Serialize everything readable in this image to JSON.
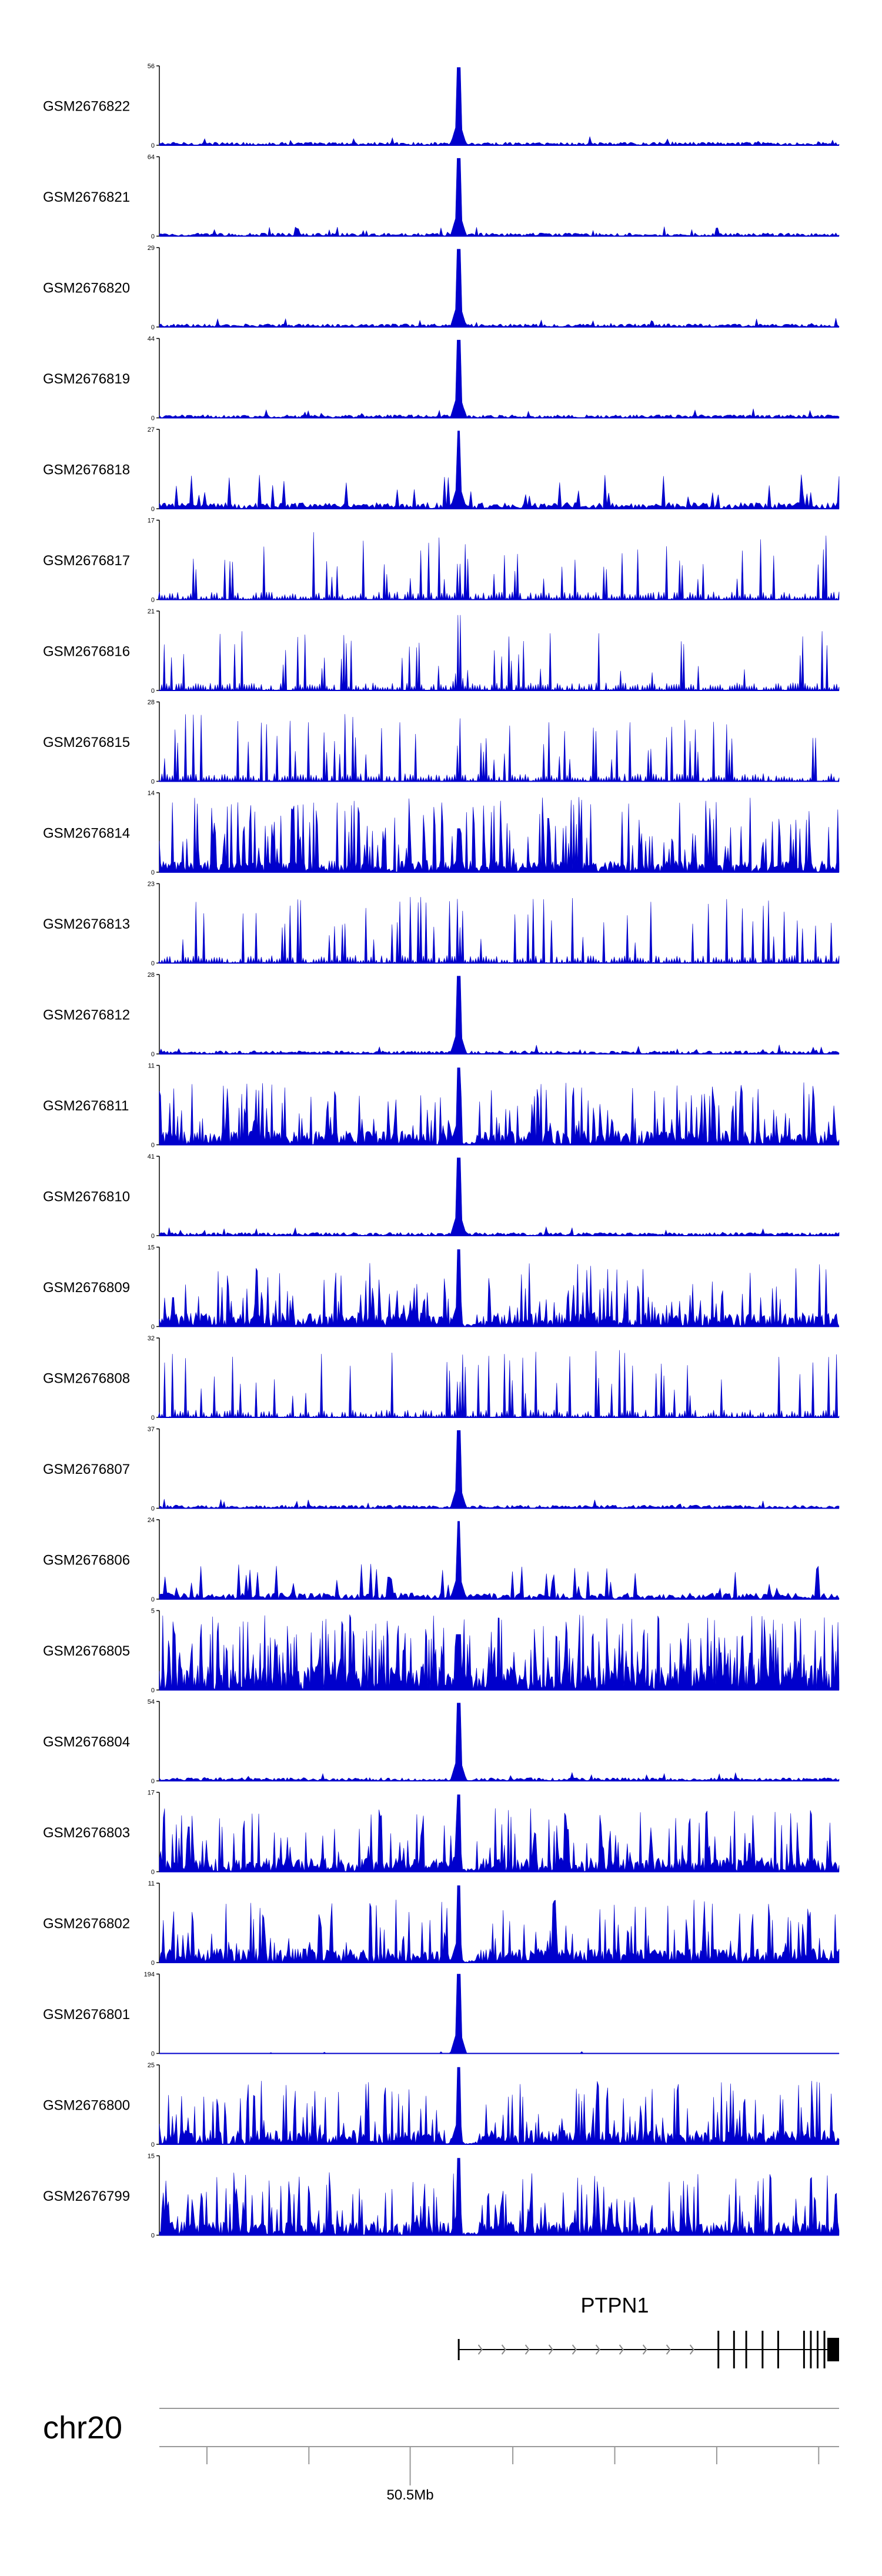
{
  "chart_data": {
    "type": "area",
    "title": "",
    "color": "#0000cc",
    "axis_color": "#000000",
    "gene_color": "#000000",
    "intron_arrow_color": "#888888",
    "peak_fraction": 0.44,
    "series": [
      {
        "name": "GSM2676822",
        "ymax": 56,
        "ymin": 0,
        "profile": "sparse-peak"
      },
      {
        "name": "GSM2676821",
        "ymax": 64,
        "ymin": 0,
        "profile": "sparse-peak"
      },
      {
        "name": "GSM2676820",
        "ymax": 29,
        "ymin": 0,
        "profile": "sparse-peak"
      },
      {
        "name": "GSM2676819",
        "ymax": 44,
        "ymin": 0,
        "profile": "sparse-peak"
      },
      {
        "name": "GSM2676818",
        "ymax": 27,
        "ymin": 0,
        "profile": "moderate-peak"
      },
      {
        "name": "GSM2676817",
        "ymax": 17,
        "ymin": 0,
        "profile": "triangular"
      },
      {
        "name": "GSM2676816",
        "ymax": 21,
        "ymin": 0,
        "profile": "triangular-peak"
      },
      {
        "name": "GSM2676815",
        "ymax": 28,
        "ymin": 0,
        "profile": "triangular"
      },
      {
        "name": "GSM2676814",
        "ymax": 14,
        "ymin": 0,
        "profile": "dense-spiky"
      },
      {
        "name": "GSM2676813",
        "ymax": 23,
        "ymin": 0,
        "profile": "triangular"
      },
      {
        "name": "GSM2676812",
        "ymax": 28,
        "ymin": 0,
        "profile": "sparse-peak"
      },
      {
        "name": "GSM2676811",
        "ymax": 11,
        "ymin": 0,
        "profile": "dense-peak"
      },
      {
        "name": "GSM2676810",
        "ymax": 41,
        "ymin": 0,
        "profile": "sparse-peak"
      },
      {
        "name": "GSM2676809",
        "ymax": 15,
        "ymin": 0,
        "profile": "dense-peak"
      },
      {
        "name": "GSM2676808",
        "ymax": 32,
        "ymin": 0,
        "profile": "triangular"
      },
      {
        "name": "GSM2676807",
        "ymax": 37,
        "ymin": 0,
        "profile": "sparse-peak"
      },
      {
        "name": "GSM2676806",
        "ymax": 24,
        "ymin": 0,
        "profile": "moderate-peak"
      },
      {
        "name": "GSM2676805",
        "ymax": 5,
        "ymin": 0,
        "profile": "very-dense"
      },
      {
        "name": "GSM2676804",
        "ymax": 54,
        "ymin": 0,
        "profile": "sparse-peak"
      },
      {
        "name": "GSM2676803",
        "ymax": 17,
        "ymin": 0,
        "profile": "dense-peak"
      },
      {
        "name": "GSM2676802",
        "ymax": 11,
        "ymin": 0,
        "profile": "dense-peak"
      },
      {
        "name": "GSM2676801",
        "ymax": 194,
        "ymin": 0,
        "profile": "single-peak"
      },
      {
        "name": "GSM2676800",
        "ymax": 25,
        "ymin": 0,
        "profile": "dense-peak"
      },
      {
        "name": "GSM2676799",
        "ymax": 15,
        "ymin": 0,
        "profile": "dense-peak"
      }
    ],
    "gene": {
      "name": "PTPN1",
      "start_fraction": 0.44,
      "end_fraction": 1.0,
      "exon_fractions": [
        0.822,
        0.845,
        0.863,
        0.887,
        0.91,
        0.948,
        0.958,
        0.968,
        0.978
      ]
    },
    "chromosome": "chr20",
    "position_label": "50.5Mb",
    "position_label_fraction": 0.369,
    "minor_tick_fractions": [
      0.07,
      0.22,
      0.369,
      0.52,
      0.67,
      0.82,
      0.97
    ]
  }
}
